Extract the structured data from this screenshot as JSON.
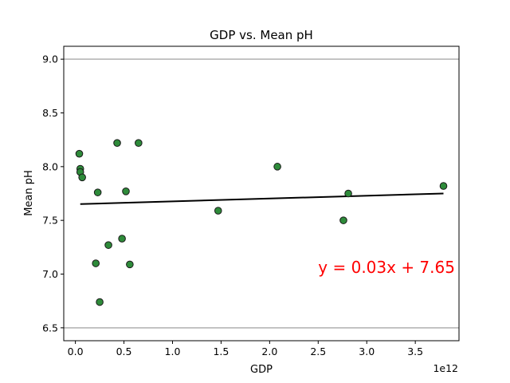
{
  "chart_data": {
    "type": "scatter",
    "title": "GDP vs. Mean pH",
    "xlabel": "GDP",
    "ylabel": "Mean pH",
    "x_scale_label": "1e12",
    "xlim": [
      -0.12,
      3.95
    ],
    "ylim": [
      6.38,
      9.12
    ],
    "x_ticks": [
      0.0,
      0.5,
      1.0,
      1.5,
      2.0,
      2.5,
      3.0,
      3.5
    ],
    "x_tick_labels": [
      "0.0",
      "0.5",
      "1.0",
      "1.5",
      "2.0",
      "2.5",
      "3.0",
      "3.5"
    ],
    "y_ticks": [
      6.5,
      7.0,
      7.5,
      8.0,
      8.5,
      9.0
    ],
    "y_tick_labels": [
      "6.5",
      "7.0",
      "7.5",
      "8.0",
      "8.5",
      "9.0"
    ],
    "hlines": [
      9.0,
      6.5
    ],
    "grid": false,
    "series": [
      {
        "color": "#2e8b3a",
        "x": [
          0.04,
          0.05,
          0.05,
          0.07,
          0.21,
          0.23,
          0.25,
          0.34,
          0.43,
          0.48,
          0.52,
          0.56,
          0.65,
          1.47,
          2.08,
          2.76,
          2.81,
          3.79
        ],
        "y": [
          8.12,
          7.98,
          7.95,
          7.9,
          7.1,
          7.76,
          6.74,
          7.27,
          8.22,
          7.33,
          7.77,
          7.09,
          8.22,
          7.59,
          8.0,
          7.5,
          7.75,
          7.82
        ]
      }
    ],
    "fit_line": {
      "slope": 0.0265,
      "intercept": 7.65,
      "x_range": [
        0.05,
        3.79
      ],
      "color": "#000000"
    },
    "annotation": {
      "text": "y = 0.03x + 7.65",
      "x": 2.5,
      "y": 7.01,
      "color": "#ff0000"
    }
  }
}
